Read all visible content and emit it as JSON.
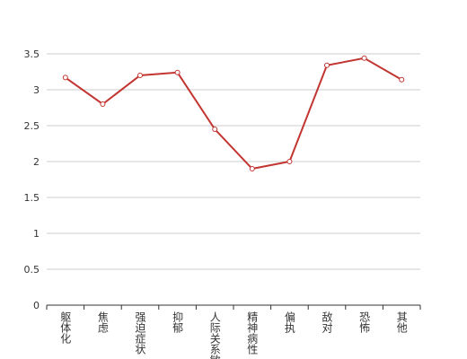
{
  "chart_data": {
    "type": "line",
    "categories": [
      "躯体化",
      "焦虑",
      "强迫症状",
      "抑郁",
      "人际关系敏感",
      "精神病性",
      "偏执",
      "敌对",
      "恐怖",
      "其他"
    ],
    "values": [
      3.17,
      2.8,
      3.2,
      3.24,
      2.45,
      1.9,
      2.0,
      3.34,
      3.44,
      3.14
    ],
    "color": "#c23531",
    "ylim": [
      0,
      3.5
    ],
    "yticks": [
      0,
      0.5,
      1,
      1.5,
      2,
      2.5,
      3,
      3.5
    ],
    "grid": true
  }
}
